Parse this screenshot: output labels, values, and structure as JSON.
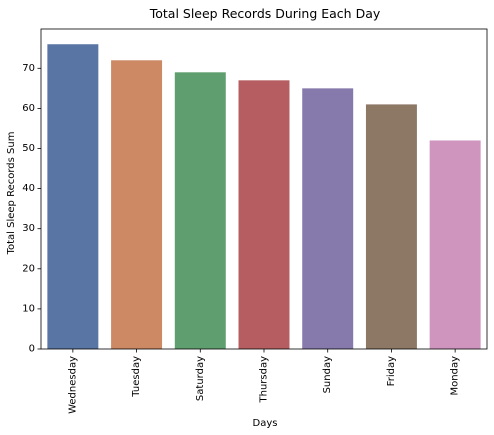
{
  "chart_data": {
    "type": "bar",
    "title": "Total Sleep Records During Each Day",
    "xlabel": "Days",
    "ylabel": "Total Sleep Records Sum",
    "categories": [
      "Wednesday",
      "Tuesday",
      "Saturday",
      "Thursday",
      "Sunday",
      "Friday",
      "Monday"
    ],
    "values": [
      76,
      72,
      69,
      67,
      65,
      61,
      52
    ],
    "colors": [
      "#5975a4",
      "#cc8963",
      "#5f9e6e",
      "#b55d60",
      "#857aab",
      "#8d7866",
      "#d095bf"
    ],
    "ylim": [
      0,
      79.8
    ],
    "yticks": [
      0,
      10,
      20,
      30,
      40,
      50,
      60,
      70
    ],
    "grid": false,
    "legend": false
  }
}
